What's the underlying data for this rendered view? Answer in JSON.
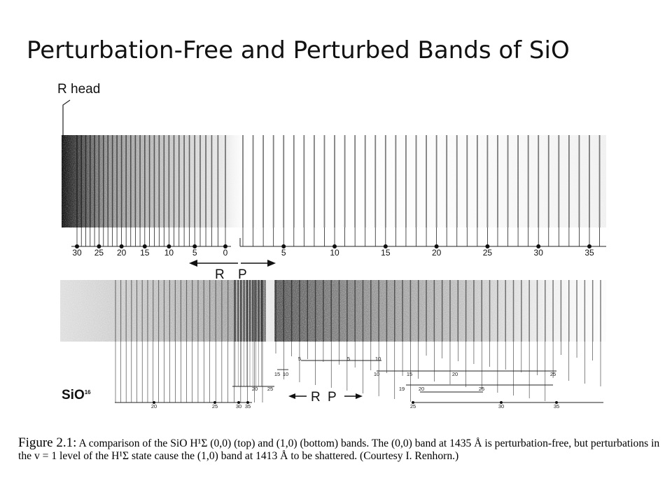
{
  "title": "Perturbation-Free and Perturbed Bands of SiO",
  "top_band": {
    "r_head_label": "R head",
    "r_branch_ticks": [
      "30",
      "25",
      "20",
      "15",
      "10",
      "5",
      "0"
    ],
    "p_branch_ticks": [
      "5",
      "10",
      "15",
      "20",
      "25",
      "30",
      "35"
    ],
    "r_arrow_label": "R",
    "p_arrow_label": "P"
  },
  "bottom_band": {
    "isotope_label": "SiO",
    "isotope_sup": "16",
    "r_arrow_label": "R",
    "p_arrow_label": "P",
    "small_labels": [
      "5",
      "5",
      "10",
      "15",
      "10",
      "10",
      "15",
      "20",
      "25",
      "19",
      "20",
      "25",
      "20",
      "25"
    ],
    "bottom_r_labels": [
      "20",
      "25",
      "30",
      "35"
    ],
    "bottom_p_labels": [
      "25",
      "30",
      "35"
    ]
  },
  "caption": {
    "label": "Figure 2.1:",
    "text": "A comparison of the SiO H¹Σ (0,0) (top) and (1,0) (bottom) bands. The (0,0) band at 1435 Å is perturbation-free, but perturbations in the v = 1 level of the H¹Σ state cause the (1,0) band at 1413 Å to be shattered. (Courtesy I. Renhorn.)"
  }
}
